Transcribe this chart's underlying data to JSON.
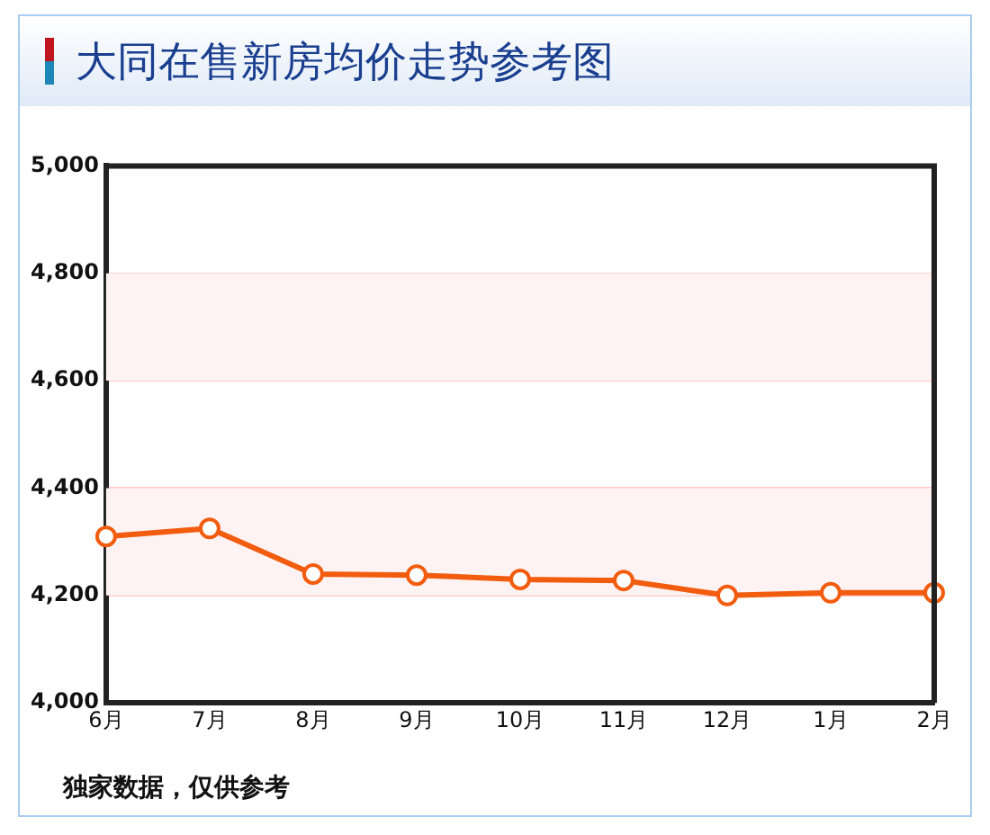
{
  "chart_data": {
    "type": "line",
    "title": "大同在售新房均价走势参考图",
    "categories": [
      "6月",
      "7月",
      "8月",
      "9月",
      "10月",
      "11月",
      "12月",
      "1月",
      "2月"
    ],
    "series": [
      {
        "color": "#f25c0f",
        "values": [
          4310,
          4325,
          4240,
          4238,
          4230,
          4228,
          4200,
          4205,
          4205
        ]
      }
    ],
    "ylim": [
      4000,
      5000
    ],
    "yticks": [
      {
        "value": 4000,
        "label": "4,000"
      },
      {
        "value": 4200,
        "label": "4,200"
      },
      {
        "value": 4400,
        "label": "4,400"
      },
      {
        "value": 4600,
        "label": "4,600"
      },
      {
        "value": 4800,
        "label": "4,800"
      },
      {
        "value": 5000,
        "label": "5,000"
      }
    ],
    "bands": [
      {
        "axis": "y",
        "from": 4200,
        "to": 4400,
        "color": "#fff2f2"
      },
      {
        "axis": "y",
        "from": 4600,
        "to": 4800,
        "color": "#fff2f2"
      }
    ],
    "grid": "y",
    "marker": "circle",
    "line_style": "solid",
    "legend": false,
    "annotations": [
      "独家数据，仅供参考"
    ]
  }
}
